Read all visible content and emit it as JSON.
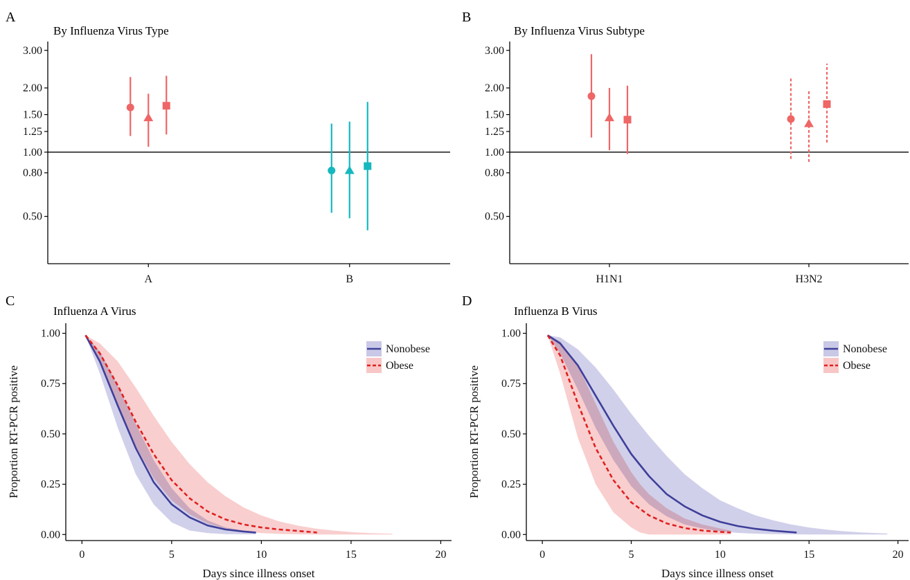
{
  "colors": {
    "influenza_a": "#EE6666",
    "influenza_b": "#15B8BE",
    "nonobese_line": "#3E3F9A",
    "nonobese_band": "#C9C8E6",
    "obese_line": "#E02020",
    "obese_band": "#F8C6C6"
  },
  "chart_data": [
    {
      "panel": "A",
      "type": "scatter",
      "title": "By Influenza Virus Type",
      "y_scale": "log",
      "ylim": [
        0.3,
        3.3
      ],
      "yticks": [
        0.5,
        0.8,
        1.0,
        1.25,
        1.5,
        2.0,
        3.0
      ],
      "ytick_labels": [
        "0.50",
        "0.80",
        "1.00",
        "1.25",
        "1.50",
        "2.00",
        "3.00"
      ],
      "reference_line": 1.0,
      "categories": [
        "A",
        "B"
      ],
      "points": [
        {
          "category": "A",
          "marker": "circle",
          "color": "influenza_a",
          "line": "solid",
          "estimate": 1.62,
          "lower": 1.19,
          "upper": 2.25
        },
        {
          "category": "A",
          "marker": "triangle",
          "color": "influenza_a",
          "line": "solid",
          "estimate": 1.45,
          "lower": 1.06,
          "upper": 1.88
        },
        {
          "category": "A",
          "marker": "square",
          "color": "influenza_a",
          "line": "solid",
          "estimate": 1.65,
          "lower": 1.21,
          "upper": 2.28
        },
        {
          "category": "B",
          "marker": "circle",
          "color": "influenza_b",
          "line": "solid",
          "estimate": 0.82,
          "lower": 0.52,
          "upper": 1.36
        },
        {
          "category": "B",
          "marker": "triangle",
          "color": "influenza_b",
          "line": "solid",
          "estimate": 0.82,
          "lower": 0.49,
          "upper": 1.39
        },
        {
          "category": "B",
          "marker": "square",
          "color": "influenza_b",
          "line": "solid",
          "estimate": 0.86,
          "lower": 0.43,
          "upper": 1.72
        }
      ]
    },
    {
      "panel": "B",
      "type": "scatter",
      "title": "By Influenza Virus Subtype",
      "y_scale": "log",
      "ylim": [
        0.3,
        3.3
      ],
      "yticks": [
        0.5,
        0.8,
        1.0,
        1.25,
        1.5,
        2.0,
        3.0
      ],
      "ytick_labels": [
        "0.50",
        "0.80",
        "1.00",
        "1.25",
        "1.50",
        "2.00",
        "3.00"
      ],
      "reference_line": 1.0,
      "categories": [
        "H1N1",
        "H3N2"
      ],
      "points": [
        {
          "category": "H1N1",
          "marker": "circle",
          "color": "influenza_a",
          "line": "solid",
          "estimate": 1.83,
          "lower": 1.17,
          "upper": 2.88
        },
        {
          "category": "H1N1",
          "marker": "triangle",
          "color": "influenza_a",
          "line": "solid",
          "estimate": 1.45,
          "lower": 1.02,
          "upper": 2.0
        },
        {
          "category": "H1N1",
          "marker": "square",
          "color": "influenza_a",
          "line": "solid",
          "estimate": 1.42,
          "lower": 0.98,
          "upper": 2.05
        },
        {
          "category": "H3N2",
          "marker": "circle",
          "color": "influenza_a",
          "line": "dashed",
          "estimate": 1.43,
          "lower": 0.93,
          "upper": 2.25
        },
        {
          "category": "H3N2",
          "marker": "triangle",
          "color": "influenza_a",
          "line": "dashed",
          "estimate": 1.36,
          "lower": 0.9,
          "upper": 1.95
        },
        {
          "category": "H3N2",
          "marker": "square",
          "color": "influenza_a",
          "line": "dashed",
          "estimate": 1.68,
          "lower": 1.11,
          "upper": 2.6
        }
      ]
    },
    {
      "panel": "C",
      "type": "line",
      "title": "Influenza A Virus",
      "xlabel": "Days since illness onset",
      "ylabel": "Proportion RT-PCR positive",
      "xlim": [
        -0.9,
        20.6
      ],
      "ylim": [
        -0.03,
        1.05
      ],
      "xticks": [
        0,
        5,
        10,
        15,
        20
      ],
      "yticks": [
        0,
        0.25,
        0.5,
        0.75,
        1.0
      ],
      "ytick_labels": [
        "0.00",
        "0.25",
        "0.50",
        "0.75",
        "1.00"
      ],
      "legend_position": "top-right",
      "series": [
        {
          "name": "Nonobese",
          "style": "solid",
          "x": [
            0.2,
            1,
            2,
            3,
            4,
            5,
            6,
            7,
            8,
            9,
            9.7
          ],
          "y": [
            0.99,
            0.86,
            0.64,
            0.43,
            0.26,
            0.15,
            0.085,
            0.045,
            0.025,
            0.015,
            0.01
          ],
          "band_x": [
            0.2,
            1,
            2,
            3,
            4,
            5,
            6,
            7,
            8,
            9,
            9.7
          ],
          "band_lower": [
            0.99,
            0.8,
            0.53,
            0.3,
            0.15,
            0.06,
            0.02,
            0.007,
            0.002,
            0.001,
            0.001
          ],
          "band_upper": [
            0.99,
            0.91,
            0.74,
            0.55,
            0.37,
            0.23,
            0.13,
            0.07,
            0.035,
            0.02,
            0.012
          ]
        },
        {
          "name": "Obese",
          "style": "dashed",
          "x": [
            0.2,
            1,
            2,
            3,
            4,
            5,
            6,
            7,
            8,
            9,
            10,
            11,
            12,
            13.1
          ],
          "y": [
            0.99,
            0.9,
            0.74,
            0.56,
            0.4,
            0.27,
            0.18,
            0.115,
            0.075,
            0.05,
            0.035,
            0.025,
            0.018,
            0.01
          ],
          "band_x": [
            0.2,
            1,
            2,
            3,
            4,
            5,
            6,
            7,
            8,
            9,
            10,
            11,
            12,
            13,
            14,
            15,
            16,
            17.3
          ],
          "band_lower": [
            0.99,
            0.86,
            0.64,
            0.44,
            0.28,
            0.17,
            0.1,
            0.055,
            0.03,
            0.015,
            0.007,
            0.003,
            0.001,
            0.0,
            0.0,
            0.0,
            0.0,
            0.0
          ],
          "band_upper": [
            0.99,
            0.95,
            0.86,
            0.73,
            0.59,
            0.46,
            0.35,
            0.26,
            0.19,
            0.135,
            0.095,
            0.065,
            0.045,
            0.03,
            0.02,
            0.012,
            0.007,
            0.004
          ]
        }
      ]
    },
    {
      "panel": "D",
      "type": "line",
      "title": "Influenza B Virus",
      "xlabel": "Days since illness onset",
      "ylabel": "Proportion RT-PCR positive",
      "xlim": [
        -0.9,
        20.6
      ],
      "ylim": [
        -0.03,
        1.05
      ],
      "xticks": [
        0,
        5,
        10,
        15,
        20
      ],
      "yticks": [
        0,
        0.25,
        0.5,
        0.75,
        1.0
      ],
      "ytick_labels": [
        "0.00",
        "0.25",
        "0.50",
        "0.75",
        "1.00"
      ],
      "legend_position": "top-right",
      "series": [
        {
          "name": "Nonobese",
          "style": "solid",
          "x": [
            0.3,
            1,
            2,
            3,
            4,
            5,
            6,
            7,
            8,
            9,
            10,
            11,
            12,
            13,
            14.3
          ],
          "y": [
            0.99,
            0.95,
            0.84,
            0.69,
            0.54,
            0.4,
            0.29,
            0.2,
            0.14,
            0.095,
            0.063,
            0.042,
            0.028,
            0.019,
            0.01
          ],
          "band_x": [
            0.3,
            1,
            2,
            3,
            4,
            5,
            6,
            7,
            8,
            9,
            10,
            11,
            12,
            13,
            14,
            15,
            16,
            17,
            18,
            19.4
          ],
          "band_lower": [
            0.99,
            0.9,
            0.72,
            0.53,
            0.37,
            0.24,
            0.15,
            0.09,
            0.05,
            0.03,
            0.016,
            0.008,
            0.004,
            0.002,
            0.001,
            0.0,
            0.0,
            0.0,
            0.0,
            0.0
          ],
          "band_upper": [
            0.99,
            0.98,
            0.92,
            0.83,
            0.72,
            0.6,
            0.49,
            0.39,
            0.3,
            0.23,
            0.17,
            0.13,
            0.095,
            0.07,
            0.05,
            0.035,
            0.024,
            0.016,
            0.01,
            0.005
          ]
        },
        {
          "name": "Obese",
          "style": "dashed",
          "x": [
            0.3,
            1,
            2,
            3,
            4,
            5,
            6,
            7,
            8,
            9,
            10,
            10.6
          ],
          "y": [
            0.99,
            0.89,
            0.65,
            0.43,
            0.27,
            0.16,
            0.095,
            0.055,
            0.032,
            0.02,
            0.013,
            0.01
          ],
          "band_x": [
            0.3,
            1,
            2,
            3,
            4,
            5,
            5.5,
            6,
            7,
            8,
            9,
            10,
            10.6
          ],
          "band_lower": [
            0.99,
            0.8,
            0.48,
            0.25,
            0.11,
            0.035,
            0.01,
            0.0,
            0.0,
            0.0,
            0.0,
            0.0,
            0.0
          ],
          "band_upper": [
            0.99,
            0.96,
            0.84,
            0.65,
            0.46,
            0.31,
            0.25,
            0.2,
            0.13,
            0.08,
            0.05,
            0.03,
            0.02
          ]
        }
      ]
    }
  ]
}
